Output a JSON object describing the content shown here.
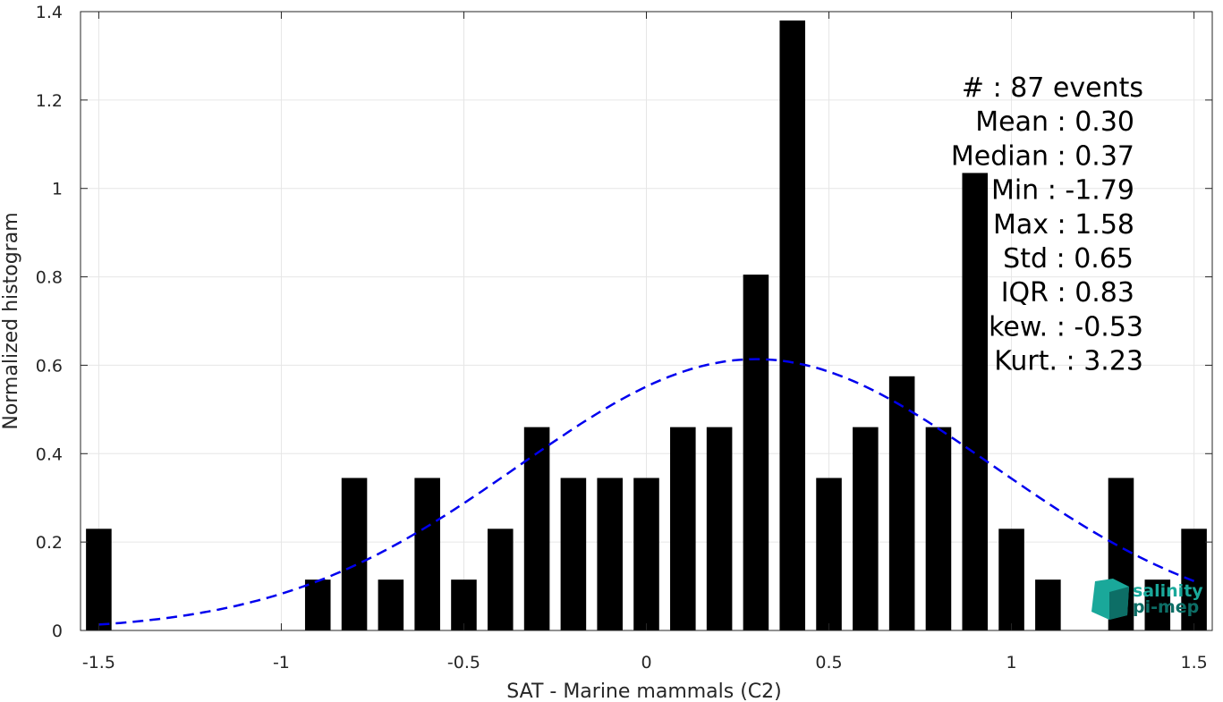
{
  "chart_data": {
    "type": "bar",
    "xlabel": "SAT - Marine mammals (C2)",
    "ylabel": "Normalized histogram",
    "xlim": [
      -1.55,
      1.55
    ],
    "ylim": [
      0,
      1.4
    ],
    "x_ticks": [
      -1.5,
      -1,
      -0.5,
      0,
      0.5,
      1,
      1.5
    ],
    "x_tick_labels": [
      "-1.5",
      "-1",
      "-0.5",
      "0",
      "0.5",
      "1",
      "1.5"
    ],
    "y_ticks": [
      0,
      0.2,
      0.4,
      0.6,
      0.8,
      1,
      1.2,
      1.4
    ],
    "y_tick_labels": [
      "0",
      "0.2",
      "0.4",
      "0.6",
      "0.8",
      "1",
      "1.2",
      "1.4"
    ],
    "grid": true,
    "bar_color": "#000000",
    "bars": [
      {
        "x": -1.5,
        "y": 0.23
      },
      {
        "x": -0.9,
        "y": 0.115
      },
      {
        "x": -0.8,
        "y": 0.345
      },
      {
        "x": -0.7,
        "y": 0.115
      },
      {
        "x": -0.6,
        "y": 0.345
      },
      {
        "x": -0.5,
        "y": 0.115
      },
      {
        "x": -0.4,
        "y": 0.23
      },
      {
        "x": -0.3,
        "y": 0.46
      },
      {
        "x": -0.2,
        "y": 0.345
      },
      {
        "x": -0.1,
        "y": 0.345
      },
      {
        "x": 0.0,
        "y": 0.345
      },
      {
        "x": 0.1,
        "y": 0.46
      },
      {
        "x": 0.2,
        "y": 0.46
      },
      {
        "x": 0.3,
        "y": 0.805
      },
      {
        "x": 0.4,
        "y": 1.38
      },
      {
        "x": 0.5,
        "y": 0.345
      },
      {
        "x": 0.6,
        "y": 0.46
      },
      {
        "x": 0.7,
        "y": 0.575
      },
      {
        "x": 0.8,
        "y": 0.46
      },
      {
        "x": 0.9,
        "y": 1.035
      },
      {
        "x": 1.0,
        "y": 0.23
      },
      {
        "x": 1.1,
        "y": 0.115
      },
      {
        "x": 1.3,
        "y": 0.345
      },
      {
        "x": 1.4,
        "y": 0.115
      },
      {
        "x": 1.5,
        "y": 0.23
      }
    ],
    "fit_curve": {
      "style": "dashed",
      "color": "#0000ee",
      "type": "normal",
      "mean": 0.3,
      "std": 0.65,
      "x_range": [
        -1.5,
        1.5
      ]
    },
    "stats": [
      {
        "label": "#  ",
        "value": ": 87 events"
      },
      {
        "label": "Mean ",
        "value": ": 0.30"
      },
      {
        "label": "Median ",
        "value": ": 0.37"
      },
      {
        "label": "Min ",
        "value": ": -1.79"
      },
      {
        "label": "Max ",
        "value": ": 1.58"
      },
      {
        "label": "Std ",
        "value": ": 0.65"
      },
      {
        "label": "IQR ",
        "value": ": 0.83"
      },
      {
        "label": "kew. ",
        "value": ": -0.53"
      },
      {
        "label": "Kurt. ",
        "value": ": 3.23"
      }
    ]
  },
  "logo": {
    "line1": "salinity",
    "line2": "pi-mep",
    "color": "#1aa89a",
    "dark": "#0d6e66"
  }
}
